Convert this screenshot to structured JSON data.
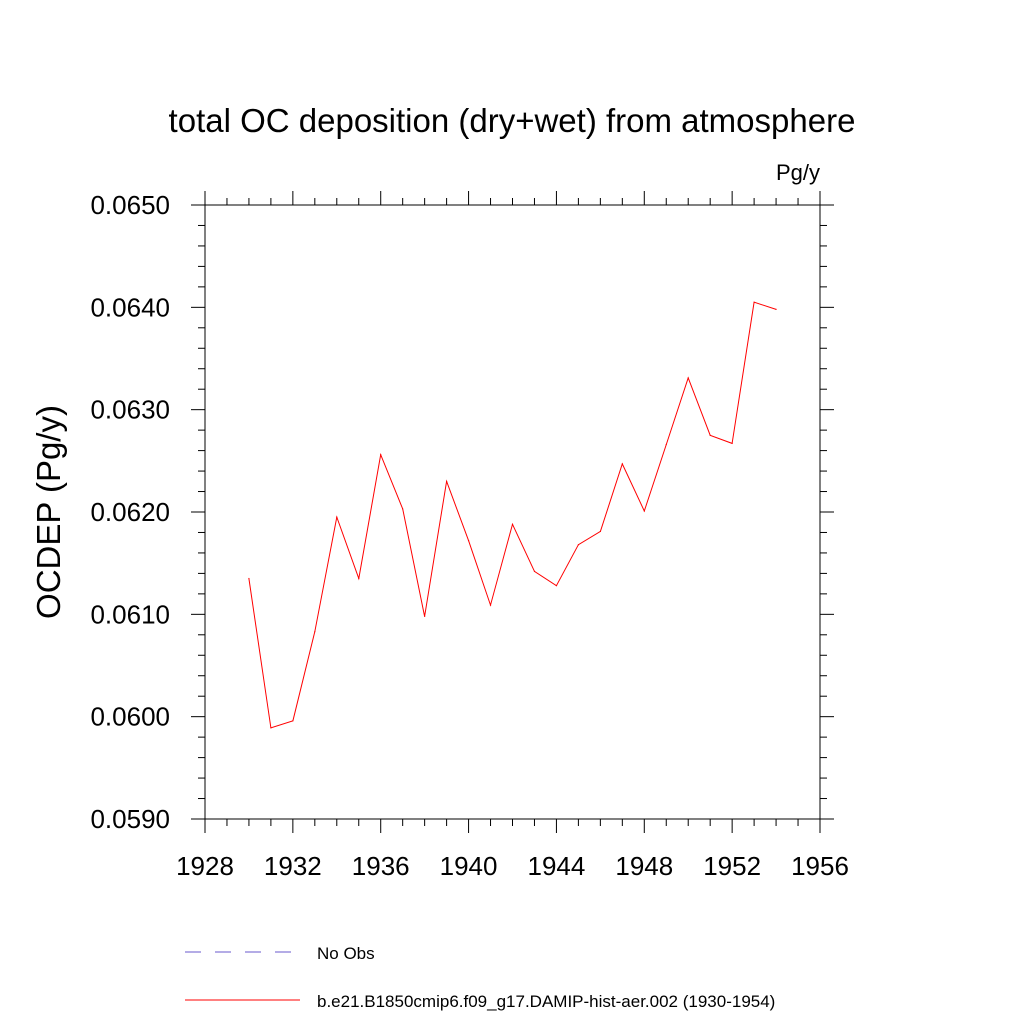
{
  "chart_data": {
    "type": "line",
    "title": "total OC deposition (dry+wet) from atmosphere",
    "units_label": "Pg/y",
    "ylabel": "OCDEP  (Pg/y)",
    "xlabel": "",
    "xlim": [
      1928,
      1956
    ],
    "ylim": [
      0.059,
      0.065
    ],
    "x_ticks": [
      1928,
      1932,
      1936,
      1940,
      1944,
      1948,
      1952,
      1956
    ],
    "y_ticks": [
      "0.0590",
      "0.0600",
      "0.0610",
      "0.0620",
      "0.0630",
      "0.0640",
      "0.0650"
    ],
    "grid": false,
    "legend_position": "bottom",
    "series": [
      {
        "name": "No Obs",
        "color": "#6a5acd",
        "dash": "dashed",
        "x": [],
        "values": []
      },
      {
        "name": "b.e21.B1850cmip6.f09_g17.DAMIP-hist-aer.002 (1930-1954)",
        "color": "#ff0000",
        "dash": "solid",
        "x": [
          1930,
          1931,
          1932,
          1933,
          1934,
          1935,
          1936,
          1937,
          1938,
          1939,
          1940,
          1941,
          1942,
          1943,
          1944,
          1945,
          1946,
          1947,
          1948,
          1949,
          1950,
          1951,
          1952,
          1953,
          1954
        ],
        "values": [
          0.06135,
          0.05989,
          0.05996,
          0.06083,
          0.06195,
          0.06135,
          0.06256,
          0.06203,
          0.06098,
          0.0623,
          0.06172,
          0.06109,
          0.06188,
          0.06142,
          0.06128,
          0.06168,
          0.06181,
          0.06247,
          0.06201,
          0.06266,
          0.06331,
          0.06275,
          0.06267,
          0.06405,
          0.06398
        ]
      }
    ]
  }
}
